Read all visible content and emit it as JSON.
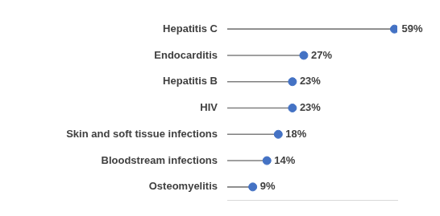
{
  "chart_data": {
    "type": "lollipop",
    "orientation": "horizontal",
    "categories": [
      "Hepatitis C",
      "Endocarditis",
      "Hepatitis B",
      "HIV",
      "Skin and soft tissue infections",
      "Bloodstream infections",
      "Osteomyelitis"
    ],
    "values": [
      59,
      27,
      23,
      23,
      18,
      14,
      9
    ],
    "value_labels": [
      "59%",
      "27%",
      "23%",
      "23%",
      "18%",
      "14%",
      "9%"
    ],
    "data_labels": true,
    "color": "#4472c4",
    "xlim": [
      0,
      60
    ],
    "grid": false,
    "tick_labels": "y"
  }
}
